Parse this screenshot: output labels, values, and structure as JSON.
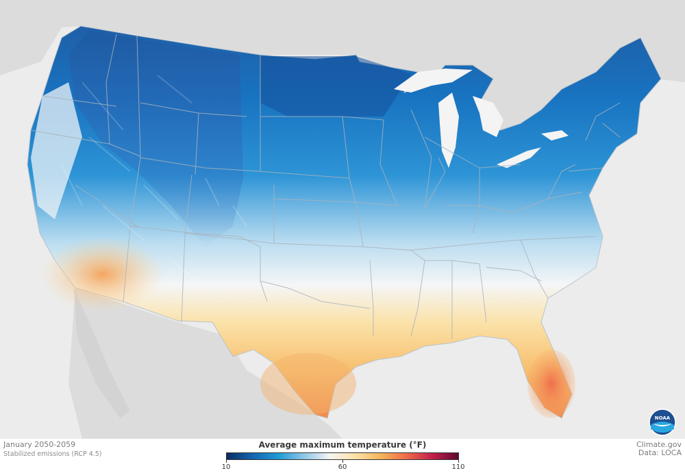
{
  "map": {
    "title": "Average maximum temperature (°F)",
    "legend": {
      "min_label": "10",
      "mid_label": "60",
      "max_label": "110",
      "min": 10,
      "mid": 60,
      "max": 110,
      "colors": [
        "#0b2c63",
        "#1565b0",
        "#1f9ad6",
        "#8fc6e6",
        "#f4f4f4",
        "#fbe2a8",
        "#f6b45a",
        "#ee6a4a",
        "#c2204b",
        "#5e0a30"
      ]
    },
    "period": "January 2050-2059",
    "scenario": "Stabilized emissions (RCP 4.5)",
    "credit_site": "Climate.gov",
    "credit_data": "Data: LOCA",
    "logo_text": "NOAA",
    "colors": {
      "background_land": "#dcdcdc",
      "water": "#f4f4f4",
      "boundary": "#a9b3bd"
    }
  }
}
